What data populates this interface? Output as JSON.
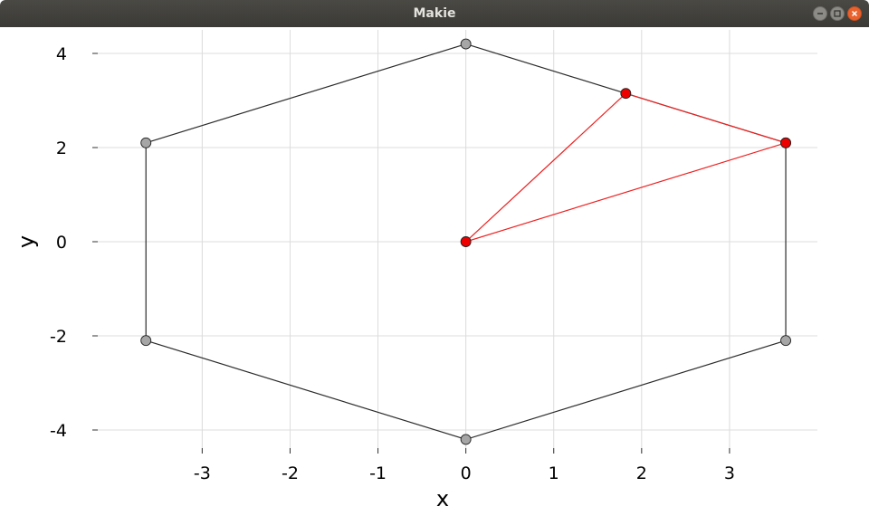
{
  "window": {
    "title": "Makie",
    "buttons": [
      "minimize-icon",
      "maximize-icon",
      "close-icon"
    ]
  },
  "chart_data": {
    "type": "scatter",
    "xlabel": "x",
    "ylabel": "y",
    "xlim": [
      -4.25,
      4.0
    ],
    "ylim": [
      -4.5,
      4.5
    ],
    "xticks": [
      -3,
      -2,
      -1,
      0,
      1,
      2,
      3
    ],
    "yticks": [
      -4,
      -2,
      0,
      2,
      4
    ],
    "grid": true,
    "series": [
      {
        "kind": "closed-polyline",
        "color": "#2b2b2b",
        "marker_color": "#a6a6a6",
        "points": [
          [
            0,
            4.2
          ],
          [
            3.64,
            2.1
          ],
          [
            3.64,
            -2.1
          ],
          [
            0,
            -4.2
          ],
          [
            -3.64,
            -2.1
          ],
          [
            -3.64,
            2.1
          ]
        ]
      },
      {
        "kind": "closed-polyline",
        "color": "#ee2222",
        "marker_color": "#ee0000",
        "points": [
          [
            0,
            0
          ],
          [
            1.82,
            3.15
          ],
          [
            3.64,
            2.1
          ]
        ]
      }
    ]
  }
}
